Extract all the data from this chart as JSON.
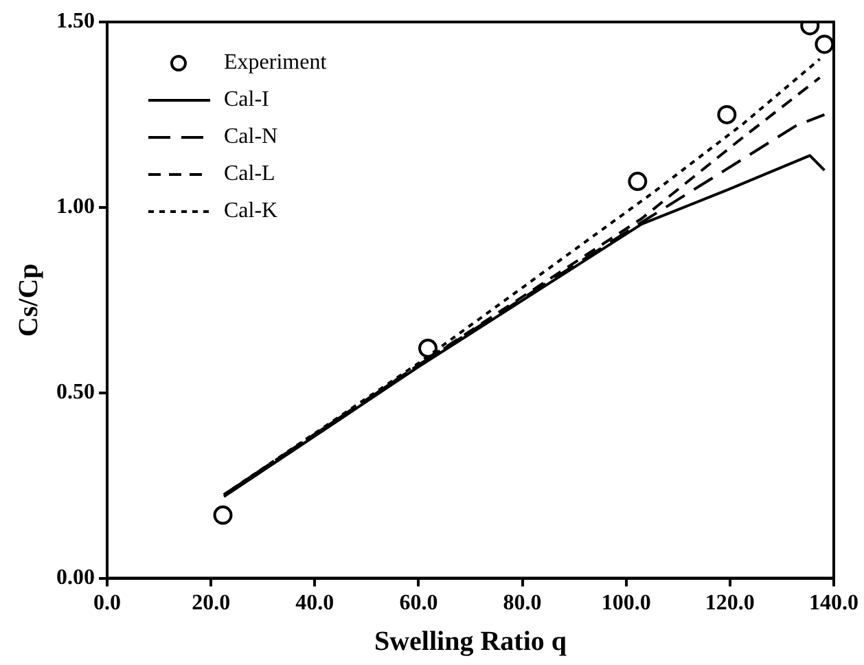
{
  "chart_data": {
    "type": "line",
    "xlabel": "Swelling Ratio q",
    "ylabel": "Cs/Cp",
    "xlim": [
      0,
      140
    ],
    "xticks": [
      {
        "value": 0,
        "label": "0.0"
      },
      {
        "value": 20,
        "label": "20.0"
      },
      {
        "value": 40,
        "label": "40.0"
      },
      {
        "value": 60,
        "label": "60.0"
      },
      {
        "value": 80,
        "label": "80.0"
      },
      {
        "value": 100,
        "label": "100.0"
      },
      {
        "value": 120,
        "label": "120.0"
      },
      {
        "value": 140,
        "label": "140.0"
      }
    ],
    "ylim": [
      0,
      1.5
    ],
    "yticks": [
      {
        "value": 0,
        "label": "0.00"
      },
      {
        "value": 0.5,
        "label": "0.50"
      },
      {
        "value": 1,
        "label": "1.00"
      },
      {
        "value": 1.5,
        "label": "1.50"
      }
    ],
    "grid": false,
    "legend": "top left",
    "series": [
      {
        "name": "Experiment",
        "type": "scatter",
        "marker": "circle",
        "color": "#000000",
        "x": [
          22.3,
          61.8,
          102.2,
          119.4,
          135.4,
          138.2
        ],
        "values": [
          0.17,
          0.62,
          1.07,
          1.25,
          1.49,
          1.44
        ]
      },
      {
        "name": "Cal-I",
        "type": "line",
        "line_style": "solid",
        "marker": "none",
        "color": "#000000",
        "x": [
          22.5,
          60,
          103,
          120,
          135.4,
          138.2
        ],
        "values": [
          0.22,
          0.57,
          0.955,
          1.05,
          1.14,
          1.1
        ]
      },
      {
        "name": "Cal-N",
        "type": "line",
        "line_style": "longdash",
        "marker": "none",
        "color": "#000000",
        "x": [
          22.5,
          60,
          103,
          119,
          132.7,
          138.2
        ],
        "values": [
          0.225,
          0.575,
          0.96,
          1.1,
          1.22,
          1.25
        ]
      },
      {
        "name": "Cal-L",
        "type": "line",
        "line_style": "dashed",
        "marker": "none",
        "color": "#000000",
        "x": [
          22.5,
          60,
          103,
          121.7,
          137.3
        ],
        "values": [
          0.225,
          0.575,
          0.97,
          1.18,
          1.35
        ]
      },
      {
        "name": "Cal-K",
        "type": "line",
        "line_style": "dotted",
        "marker": "none",
        "color": "#000000",
        "x": [
          22.5,
          60,
          105.2,
          122.5,
          137.3
        ],
        "values": [
          0.225,
          0.58,
          1.04,
          1.225,
          1.4
        ]
      }
    ]
  }
}
